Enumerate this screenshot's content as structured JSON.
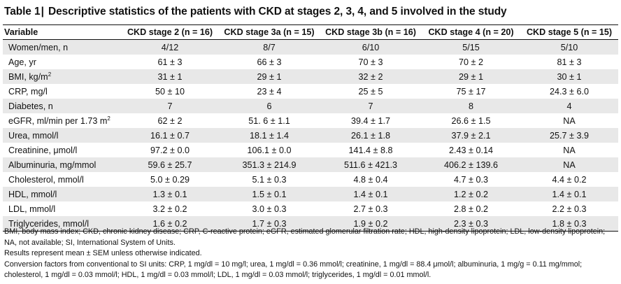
{
  "title": {
    "label": "Table 1",
    "separator": "|",
    "text": "Descriptive statistics of the patients with CKD at stages 2, 3, 4, and 5 involved in the study"
  },
  "table": {
    "columns": [
      "Variable",
      "CKD stage 2 (n = 16)",
      "CKD stage 3a (n = 15)",
      "CKD stage 3b (n = 16)",
      "CKD stage 4 (n = 20)",
      "CKD stage 5 (n = 15)"
    ],
    "rows": [
      {
        "variable": "Women/men, n",
        "sup": "",
        "values": [
          "4/12",
          "8/7",
          "6/10",
          "5/15",
          "5/10"
        ]
      },
      {
        "variable": "Age, yr",
        "sup": "",
        "values": [
          "61 ± 3",
          "66 ± 3",
          "70 ± 3",
          "70 ± 2",
          "81 ± 3"
        ]
      },
      {
        "variable": "BMI, kg/m",
        "sup": "2",
        "values": [
          "31 ± 1",
          "29 ± 1",
          "32 ± 2",
          "29 ± 1",
          "30 ± 1"
        ]
      },
      {
        "variable": "CRP, mg/l",
        "sup": "",
        "values": [
          "50 ± 10",
          "23 ± 4",
          "25 ± 5",
          "75 ± 17",
          "24.3 ± 6.0"
        ]
      },
      {
        "variable": "Diabetes, n",
        "sup": "",
        "values": [
          "7",
          "6",
          "7",
          "8",
          "4"
        ]
      },
      {
        "variable": "eGFR, ml/min per 1.73 m",
        "sup": "2",
        "values": [
          "62 ± 2",
          "51. 6 ± 1.1",
          "39.4 ± 1.7",
          "26.6 ± 1.5",
          "NA"
        ]
      },
      {
        "variable": "Urea, mmol/l",
        "sup": "",
        "values": [
          "16.1 ± 0.7",
          "18.1 ± 1.4",
          "26.1 ± 1.8",
          "37.9 ± 2.1",
          "25.7 ± 3.9"
        ]
      },
      {
        "variable": "Creatinine, μmol/l",
        "sup": "",
        "values": [
          "97.2 ± 0.0",
          "106.1 ± 0.0",
          "141.4 ± 8.8",
          "2.43 ± 0.14",
          "NA"
        ]
      },
      {
        "variable": "Albuminuria, mg/mmol",
        "sup": "",
        "values": [
          "59.6 ± 25.7",
          "351.3 ± 214.9",
          "511.6 ± 421.3",
          "406.2 ± 139.6",
          "NA"
        ]
      },
      {
        "variable": "Cholesterol, mmol/l",
        "sup": "",
        "values": [
          "5.0 ± 0.29",
          "5.1 ± 0.3",
          "4.8 ± 0.4",
          "4.7 ± 0.3",
          "4.4 ± 0.2"
        ]
      },
      {
        "variable": "HDL, mmol/l",
        "sup": "",
        "values": [
          "1.3 ± 0.1",
          "1.5 ± 0.1",
          "1.4 ± 0.1",
          "1.2 ± 0.2",
          "1.4 ± 0.1"
        ]
      },
      {
        "variable": "LDL, mmol/l",
        "sup": "",
        "values": [
          "3.2 ± 0.2",
          "3.0 ± 0.3",
          "2.7 ± 0.3",
          "2.8 ± 0.2",
          "2.2 ± 0.3"
        ]
      },
      {
        "variable": "Triglycerides, mmol/l",
        "sup": "",
        "values": [
          "1.6 ± 0.2",
          "1.7 ± 0.3",
          "1.9 ± 0.2",
          "2.3 ± 0.3",
          "1.8 ± 0.3"
        ]
      }
    ]
  },
  "footnotes": [
    "BMI, body mass index; CKD, chronic kidney disease; CRP, C-reactive protein; eGFR, estimated glomerular filtration rate; HDL, high-density lipoprotein; LDL, low-density lipoprotein; NA, not available; SI, International System of Units.",
    "Results represent mean ± SEM unless otherwise indicated.",
    "Conversion factors from conventional to SI units: CRP, 1 mg/dl = 10 mg/l; urea, 1 mg/dl = 0.36 mmol/l; creatinine, 1 mg/dl = 88.4 μmol/l; albuminuria, 1 mg/g = 0.11 mg/mmol; cholesterol, 1 mg/dl = 0.03 mmol/l; HDL, 1 mg/dl = 0.03 mmol/l; LDL, 1 mg/dl = 0.03 mmol/l; triglycerides, 1 mg/dl = 0.01 mmol/l."
  ],
  "colors": {
    "shaded_row": "#e8e8e8",
    "rule": "#111111"
  }
}
